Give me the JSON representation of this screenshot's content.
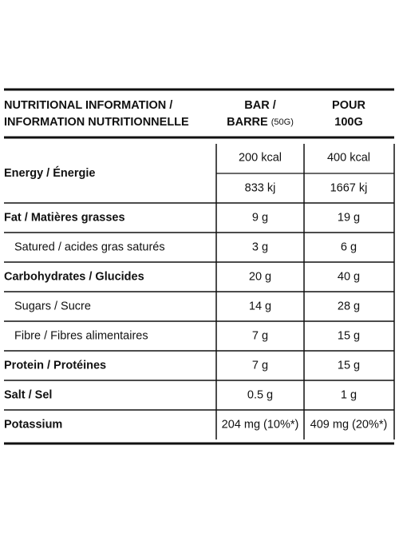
{
  "header": {
    "title_line1": "NUTRITIONAL INFORMATION /",
    "title_line2": "INFORMATION NUTRITIONNELLE",
    "col1_line1": "BAR /",
    "col1_line2": "BARRE",
    "col1_unit": "(50G)",
    "col2_line1": "POUR",
    "col2_line2": "100G"
  },
  "rows": [
    {
      "label": "Energy / Énergie",
      "bold": true,
      "bar": [
        "200 kcal",
        "833 kj"
      ],
      "per100": [
        "400 kcal",
        "1667 kj"
      ]
    },
    {
      "label": "Fat / Matières grasses",
      "bold": true,
      "bar": "9 g",
      "per100": "19 g"
    },
    {
      "label": "Satured / acides gras saturés",
      "bold": false,
      "bar": "3 g",
      "per100": "6 g"
    },
    {
      "label": "Carbohydrates / Glucides",
      "bold": true,
      "bar": "20 g",
      "per100": "40 g"
    },
    {
      "label": "Sugars / Sucre",
      "bold": false,
      "bar": "14 g",
      "per100": "28 g"
    },
    {
      "label": "Fibre / Fibres alimentaires",
      "bold": false,
      "bar": "7 g",
      "per100": "15 g"
    },
    {
      "label": "Protein / Protéines",
      "bold": true,
      "bar": "7 g",
      "per100": "15 g"
    },
    {
      "label": "Salt / Sel",
      "bold": true,
      "bar": "0.5 g",
      "per100": "1 g"
    },
    {
      "label": "Potassium",
      "bold": true,
      "bar": "204 mg (10%*)",
      "per100": "409 mg (20%*)"
    }
  ]
}
